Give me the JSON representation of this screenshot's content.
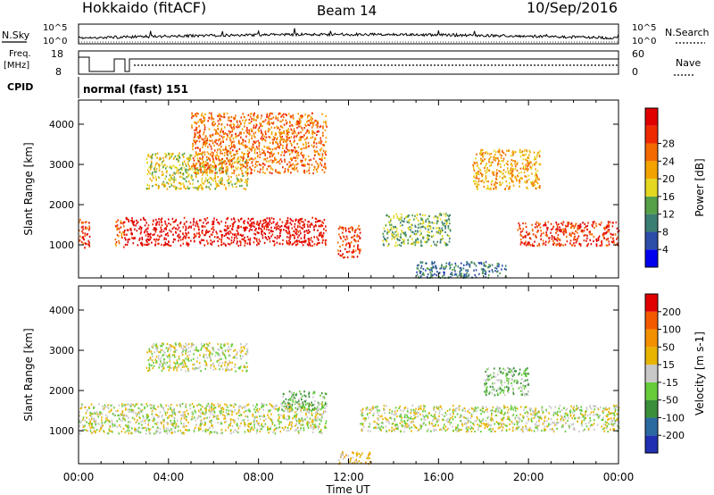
{
  "header": {
    "radar": "Hokkaido (fitACF)",
    "beam": "Beam 14",
    "date": "10/Sep/2016"
  },
  "labels": {
    "nsky": "N.Sky",
    "nsearch": "N.Search",
    "freq_line1": "Freq.",
    "freq_line2": "[MHz]",
    "nave": "Nave",
    "cpid": "CPID",
    "cpid_value": "normal (fast) 151",
    "noise_top": "10^5",
    "noise_bottom": "10^0",
    "freq_top": "18",
    "freq_bottom": "8",
    "nave_top": "60",
    "nave_bottom": "0"
  },
  "chart_data": [
    {
      "type": "heatmap",
      "name": "power-panel",
      "ylabel": "Slant Range [km]",
      "yticks": [
        1000,
        2000,
        3000,
        4000
      ],
      "ylim": [
        180,
        4600
      ],
      "colorbar": {
        "label": "Power [dB]",
        "ticks": [
          4,
          8,
          12,
          16,
          20,
          24,
          28
        ],
        "colors": [
          "#0000ee",
          "#2c4da8",
          "#3a7d72",
          "#56a04a",
          "#e4d820",
          "#f3a300",
          "#f36a00",
          "#ee2a00",
          "#e00000"
        ]
      },
      "bands": [
        {
          "t": [
            0.0,
            0.5
          ],
          "r": [
            950,
            1650
          ],
          "level": 7
        },
        {
          "t": [
            1.6,
            2.0
          ],
          "r": [
            950,
            1650
          ],
          "level": 6
        },
        {
          "t": [
            2.0,
            11.0
          ],
          "r": [
            1000,
            1700
          ],
          "level": 8
        },
        {
          "t": [
            19.5,
            24.0
          ],
          "r": [
            1000,
            1600
          ],
          "level": 7
        },
        {
          "t": [
            3.0,
            7.5
          ],
          "r": [
            2400,
            3300
          ],
          "level": 4
        },
        {
          "t": [
            5.0,
            11.0
          ],
          "r": [
            2800,
            4300
          ],
          "level": 6
        },
        {
          "t": [
            11.5,
            12.5
          ],
          "r": [
            700,
            1500
          ],
          "level": 7
        },
        {
          "t": [
            13.5,
            16.5
          ],
          "r": [
            1000,
            1800
          ],
          "level": 3
        },
        {
          "t": [
            17.5,
            20.5
          ],
          "r": [
            2400,
            3400
          ],
          "level": 5
        },
        {
          "t": [
            15.0,
            19.0
          ],
          "r": [
            200,
            600
          ],
          "level": 2
        }
      ]
    },
    {
      "type": "heatmap",
      "name": "velocity-panel",
      "xlabel": "Time UT",
      "ylabel": "Slant Range [km]",
      "xticks": [
        "00:00",
        "04:00",
        "08:00",
        "12:00",
        "16:00",
        "20:00",
        "00:00"
      ],
      "yticks": [
        1000,
        2000,
        3000,
        4000
      ],
      "ylim": [
        180,
        4600
      ],
      "colorbar": {
        "label": "Velocity [m s-1]",
        "ticks": [
          200,
          100,
          50,
          15,
          -15,
          -50,
          -100,
          -200
        ],
        "colors": [
          "#2030b0",
          "#2a6aa0",
          "#3b8f3a",
          "#66cc3a",
          "#c8c8c8",
          "#e8b400",
          "#f39000",
          "#f35a00",
          "#e00000"
        ]
      },
      "bands": [
        {
          "t": [
            0.0,
            11.0
          ],
          "r": [
            950,
            1700
          ],
          "level": 4
        },
        {
          "t": [
            12.5,
            24.0
          ],
          "r": [
            1000,
            1650
          ],
          "level": 4
        },
        {
          "t": [
            9.0,
            11.0
          ],
          "r": [
            1500,
            2000
          ],
          "level": 3
        },
        {
          "t": [
            18.0,
            20.0
          ],
          "r": [
            1900,
            2600
          ],
          "level": 3
        },
        {
          "t": [
            11.5,
            13.0
          ],
          "r": [
            200,
            500
          ],
          "level": 5
        },
        {
          "t": [
            3.0,
            7.5
          ],
          "r": [
            2500,
            3200
          ],
          "level": 4
        }
      ]
    }
  ]
}
